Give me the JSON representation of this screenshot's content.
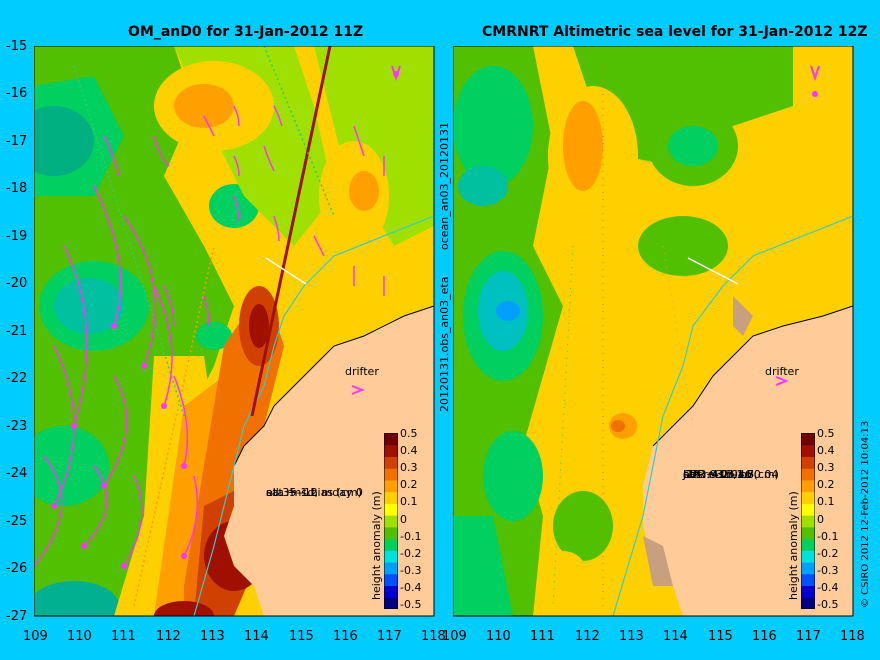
{
  "left_panel": {
    "title": "OM_anD0 for 31-Jan-2012 11Z",
    "legend_lines": [
      "eta +-1d, mday 0",
      "sat rms bias (cm)",
      "all 35 -12"
    ],
    "drifter_label": "drifter"
  },
  "right_panel": {
    "title": "CMRNRT Altimetric sea level  for 31-Jan-2012 12Z",
    "legend_lines": [
      "obs +-1d, oi-0.04",
      "sat rms bias (cm)",
      "J1R   4.1 -1.7",
      "J2R   4.2 -1.8",
      "C2R   3.7 1.5",
      "all 3.9 0.046"
    ],
    "drifter_label": "drifter"
  },
  "y_ticks": [
    "-15",
    "-16",
    "-17",
    "-18",
    "-19",
    "-20",
    "-21",
    "-22",
    "-23",
    "-24",
    "-25",
    "-26",
    "-27"
  ],
  "x_ticks": [
    "109",
    "110",
    "111",
    "112",
    "113",
    "114",
    "115",
    "116",
    "117",
    "118"
  ],
  "side_labels": {
    "left_vertical": "20120131.obs_an03_eta",
    "left_vertical_top": "ocean_an03_20120131",
    "copyright": "© CSIRO 2012  12-Feb-2012 10:04:13"
  },
  "colorbar": {
    "label": "height anomaly (m)",
    "ticks": [
      "0.5",
      "0.4",
      "0.3",
      "0.2",
      "0.1",
      "0",
      "-0.1",
      "-0.2",
      "-0.3",
      "-0.4",
      "-0.5"
    ],
    "colors": [
      "#000080",
      "#0000d0",
      "#0050ff",
      "#00a0ff",
      "#00e0e0",
      "#00d060",
      "#50c000",
      "#a0e000",
      "#ffff00",
      "#ffd000",
      "#ffa000",
      "#f07000",
      "#d04000",
      "#a01000",
      "#700000"
    ]
  },
  "colors": {
    "background": "#00ccff",
    "land": "#ffcc99",
    "vector": "#ff33ff",
    "coast_contour": "#33cccc"
  }
}
